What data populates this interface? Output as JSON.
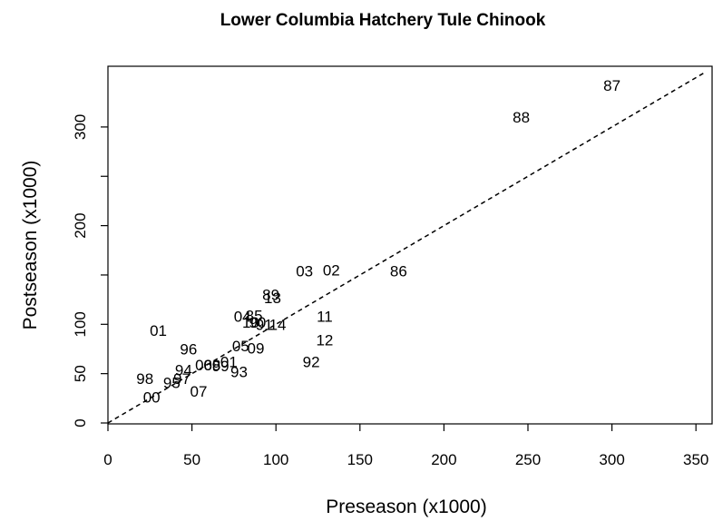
{
  "chart_data": {
    "type": "scatter",
    "title": "Lower Columbia Hatchery Tule Chinook",
    "xlabel": "Preseason (x1000)",
    "ylabel": "Postseason (x1000)",
    "xlim": [
      0,
      360
    ],
    "ylim": [
      0,
      350
    ],
    "xticks": [
      "0",
      "50",
      "100",
      "150",
      "200",
      "250",
      "300",
      "350"
    ],
    "yticks": [
      "0",
      "50",
      "100",
      "200",
      "300"
    ],
    "reference_line": "y = x (dashed)",
    "points": [
      {
        "label": "87",
        "x": 300,
        "y": 342
      },
      {
        "label": "88",
        "x": 246,
        "y": 310
      },
      {
        "label": "86",
        "x": 173,
        "y": 154
      },
      {
        "label": "03",
        "x": 117,
        "y": 154
      },
      {
        "label": "02",
        "x": 133,
        "y": 155
      },
      {
        "label": "89",
        "x": 97,
        "y": 130
      },
      {
        "label": "13",
        "x": 98,
        "y": 127
      },
      {
        "label": "11",
        "x": 129,
        "y": 108
      },
      {
        "label": "12",
        "x": 129,
        "y": 84
      },
      {
        "label": "92",
        "x": 121,
        "y": 62
      },
      {
        "label": "01",
        "x": 30,
        "y": 94
      },
      {
        "label": "04",
        "x": 80,
        "y": 108
      },
      {
        "label": "85",
        "x": 87,
        "y": 109
      },
      {
        "label": "10",
        "x": 85,
        "y": 102
      },
      {
        "label": "90",
        "x": 89,
        "y": 102
      },
      {
        "label": "91",
        "x": 93,
        "y": 100
      },
      {
        "label": "14",
        "x": 101,
        "y": 100
      },
      {
        "label": "96",
        "x": 48,
        "y": 75
      },
      {
        "label": "05",
        "x": 79,
        "y": 78
      },
      {
        "label": "09",
        "x": 88,
        "y": 76
      },
      {
        "label": "98",
        "x": 22,
        "y": 45
      },
      {
        "label": "95",
        "x": 38,
        "y": 41
      },
      {
        "label": "97",
        "x": 44,
        "y": 45
      },
      {
        "label": "94",
        "x": 45,
        "y": 54
      },
      {
        "label": "06",
        "x": 57,
        "y": 59
      },
      {
        "label": "08",
        "x": 62,
        "y": 59
      },
      {
        "label": "99",
        "x": 67,
        "y": 58
      },
      {
        "label": "01",
        "x": 72,
        "y": 62
      },
      {
        "label": "93",
        "x": 78,
        "y": 52
      },
      {
        "label": "07",
        "x": 54,
        "y": 32
      },
      {
        "label": "00",
        "x": 26,
        "y": 26
      }
    ]
  }
}
